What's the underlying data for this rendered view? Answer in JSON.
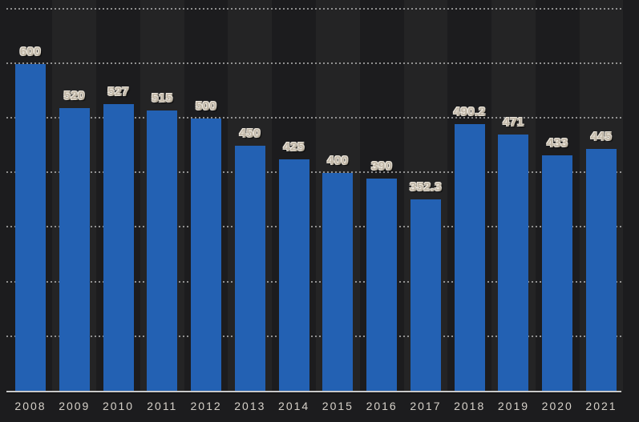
{
  "chart_data": {
    "type": "bar",
    "title": "",
    "xlabel": "",
    "ylabel": "",
    "categories": [
      "2008",
      "2009",
      "2010",
      "2011",
      "2012",
      "2013",
      "2014",
      "2015",
      "2016",
      "2017",
      "2018",
      "2019",
      "2020",
      "2021"
    ],
    "values": [
      600,
      520,
      527,
      515,
      500,
      450,
      425,
      400,
      390,
      352.3,
      490.2,
      471,
      433,
      445
    ],
    "value_labels": [
      "600",
      "520",
      "527",
      "515",
      "500",
      "450",
      "425",
      "400",
      "390",
      "352.3",
      "490.2",
      "471",
      "433",
      "445"
    ],
    "ylim": [
      0,
      700
    ],
    "gridline_step": 100,
    "grid": true,
    "legend": false,
    "axis_tick_labels_y_visible": false,
    "colors": {
      "bar": "#2361b3",
      "background": "#1c1c1e",
      "band_highlight": "rgba(255,255,255,0.035)",
      "gridline": "#b5b5b5",
      "baseline": "#c8c8c8",
      "tick_label": "#d6d1c9",
      "value_label": "#c0b6a6"
    }
  }
}
